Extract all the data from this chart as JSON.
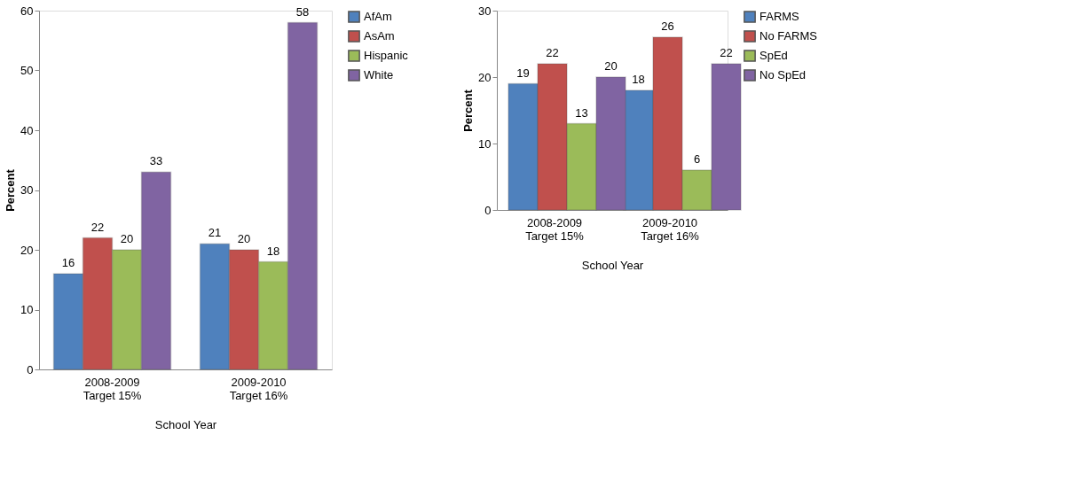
{
  "chart_data": [
    {
      "type": "bar",
      "xlabel": "School Year",
      "ylabel": "Percent",
      "categories": [
        "2008-2009\nTarget 15%",
        "2009-2010\nTarget 16%"
      ],
      "series": [
        {
          "name": "AfAm",
          "color": "#4f81bd",
          "values": [
            16,
            21
          ]
        },
        {
          "name": "AsAm",
          "color": "#c0504d",
          "values": [
            22,
            20
          ]
        },
        {
          "name": "Hispanic",
          "color": "#9bbb59",
          "values": [
            20,
            18
          ]
        },
        {
          "name": "White",
          "color": "#8064a2",
          "values": [
            33,
            58
          ]
        }
      ],
      "ylim": [
        0,
        60
      ],
      "yticks": [
        0,
        10,
        20,
        30,
        40,
        50,
        60
      ],
      "grid": false,
      "legend": "right",
      "data_labels": true
    },
    {
      "type": "bar",
      "xlabel": "School Year",
      "ylabel": "Percent",
      "categories": [
        "2008-2009\nTarget 15%",
        "2009-2010\nTarget 16%"
      ],
      "series": [
        {
          "name": "FARMS",
          "color": "#4f81bd",
          "values": [
            19,
            18
          ]
        },
        {
          "name": "No FARMS",
          "color": "#c0504d",
          "values": [
            22,
            26
          ]
        },
        {
          "name": "SpEd",
          "color": "#9bbb59",
          "values": [
            13,
            6
          ]
        },
        {
          "name": "No SpEd",
          "color": "#8064a2",
          "values": [
            20,
            22
          ]
        }
      ],
      "ylim": [
        0,
        30
      ],
      "yticks": [
        0,
        10,
        20,
        30
      ],
      "grid": false,
      "legend": "right",
      "data_labels": true
    }
  ]
}
